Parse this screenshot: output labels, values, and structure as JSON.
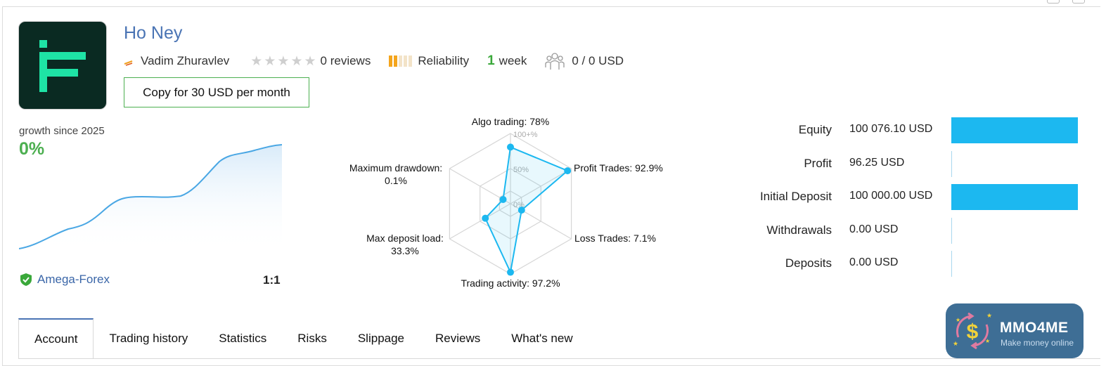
{
  "signal": {
    "name": "Ho Ney",
    "author": "Vadim Zhuravlev",
    "reviews_text": "0 reviews",
    "reliability_label": "Reliability",
    "age_number": "1",
    "age_unit": "week",
    "subscribers_text": "0 / 0 USD",
    "copy_button": "Copy for 30 USD per month",
    "rating_stars": 0,
    "reliability_level": 2
  },
  "growth": {
    "label": "growth since 2025",
    "value": "0%",
    "broker": "Amega-Forex",
    "leverage": "1:1"
  },
  "radar": {
    "labels": {
      "algo": "Algo trading: 78%",
      "profit": "Profit Trades: 92.9%",
      "loss": "Loss Trades: 7.1%",
      "activity": "Trading activity: 97.2%",
      "deposit_load_1": "Max deposit load:",
      "deposit_load_2": "33.3%",
      "drawdown_1": "Maximum drawdown:",
      "drawdown_2": "0.1%"
    },
    "scale": {
      "top": "100+%",
      "mid": "50%",
      "zero": "0%"
    },
    "values": {
      "algo": 78,
      "profit": 92.9,
      "loss": 7.1,
      "activity": 97.2,
      "deposit_load": 33.3,
      "drawdown": 0.1
    }
  },
  "stats": [
    {
      "label": "Equity",
      "value": "100 076.10 USD",
      "fill": 1.0
    },
    {
      "label": "Profit",
      "value": "96.25 USD",
      "fill": 0
    },
    {
      "label": "Initial Deposit",
      "value": "100 000.00 USD",
      "fill": 1.0
    },
    {
      "label": "Withdrawals",
      "value": "0.00 USD",
      "fill": 0
    },
    {
      "label": "Deposits",
      "value": "0.00 USD",
      "fill": 0
    }
  ],
  "tabs": [
    "Account",
    "Trading history",
    "Statistics",
    "Risks",
    "Slippage",
    "Reviews",
    "What's new"
  ],
  "watermark": {
    "title": "MMO4ME",
    "subtitle": "Make money online"
  },
  "colors": {
    "accent_blue": "#1cb8f0",
    "link_blue": "#4a74b4",
    "green": "#4caf50",
    "logo_bg": "#0a2a22",
    "logo_fg": "#1ee3a5"
  }
}
